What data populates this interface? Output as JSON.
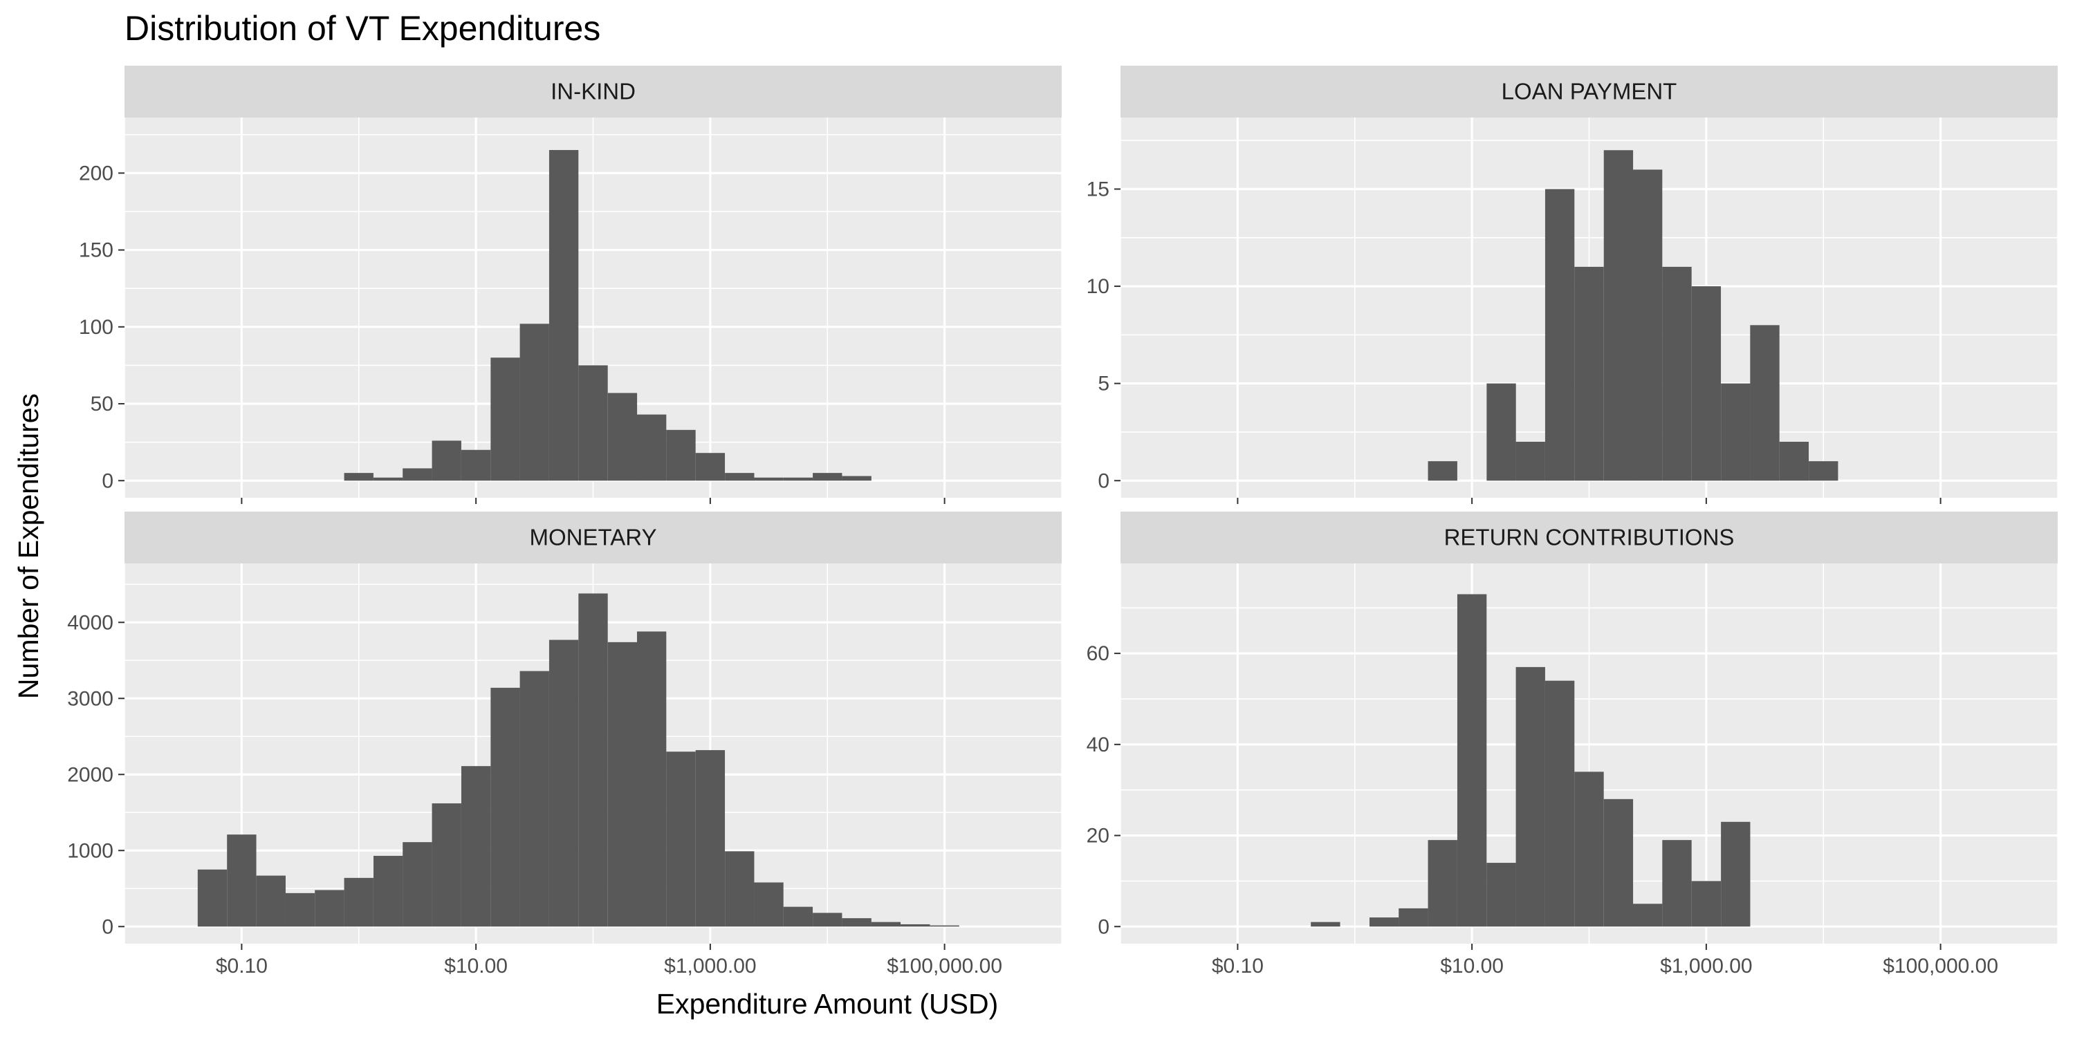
{
  "chart_data": {
    "type": "bar",
    "title": "Distribution of VT Expenditures",
    "xlabel": "Expenditure Amount (USD)",
    "ylabel": "Number of Expenditures",
    "x_scale": "log10",
    "x_range_usd": [
      0.01,
      1000000
    ],
    "x_ticks": [
      {
        "value": 0.1,
        "label": "$0.10"
      },
      {
        "value": 10,
        "label": "$10.00"
      },
      {
        "value": 1000,
        "label": "$1,000.00"
      },
      {
        "value": 100000,
        "label": "$100,000.00"
      }
    ],
    "bin_width_log10": 0.25,
    "grid": true,
    "panels": [
      {
        "name": "IN-KIND",
        "ylim": [
          0,
          225
        ],
        "y_ticks": [
          0,
          50,
          100,
          150,
          200
        ],
        "bins": [
          {
            "x": 1.0,
            "y": 5
          },
          {
            "x": 1.78,
            "y": 2
          },
          {
            "x": 3.16,
            "y": 8
          },
          {
            "x": 5.62,
            "y": 26
          },
          {
            "x": 10,
            "y": 20
          },
          {
            "x": 17.8,
            "y": 80
          },
          {
            "x": 31.6,
            "y": 102
          },
          {
            "x": 56.2,
            "y": 215
          },
          {
            "x": 100,
            "y": 75
          },
          {
            "x": 178,
            "y": 57
          },
          {
            "x": 316,
            "y": 43
          },
          {
            "x": 562,
            "y": 33
          },
          {
            "x": 1000,
            "y": 18
          },
          {
            "x": 1780,
            "y": 5
          },
          {
            "x": 3160,
            "y": 2
          },
          {
            "x": 5620,
            "y": 2
          },
          {
            "x": 10000,
            "y": 5
          },
          {
            "x": 17800,
            "y": 3
          }
        ]
      },
      {
        "name": "LOAN PAYMENT",
        "ylim": [
          0,
          17.8
        ],
        "y_ticks": [
          0,
          5,
          10,
          15
        ],
        "bins": [
          {
            "x": 5.62,
            "y": 1
          },
          {
            "x": 17.8,
            "y": 5
          },
          {
            "x": 31.6,
            "y": 2
          },
          {
            "x": 56.2,
            "y": 15
          },
          {
            "x": 100,
            "y": 11
          },
          {
            "x": 178,
            "y": 17
          },
          {
            "x": 316,
            "y": 16
          },
          {
            "x": 562,
            "y": 11
          },
          {
            "x": 1000,
            "y": 10
          },
          {
            "x": 1780,
            "y": 5
          },
          {
            "x": 3160,
            "y": 8
          },
          {
            "x": 5620,
            "y": 2
          },
          {
            "x": 10000,
            "y": 1
          }
        ]
      },
      {
        "name": "MONETARY",
        "ylim": [
          0,
          4550
        ],
        "y_ticks": [
          0,
          1000,
          2000,
          3000,
          4000
        ],
        "bins": [
          {
            "x": 0.0562,
            "y": 750
          },
          {
            "x": 0.1,
            "y": 1210
          },
          {
            "x": 0.178,
            "y": 670
          },
          {
            "x": 0.316,
            "y": 440
          },
          {
            "x": 0.562,
            "y": 480
          },
          {
            "x": 1.0,
            "y": 640
          },
          {
            "x": 1.78,
            "y": 930
          },
          {
            "x": 3.16,
            "y": 1110
          },
          {
            "x": 5.62,
            "y": 1620
          },
          {
            "x": 10,
            "y": 2110
          },
          {
            "x": 17.8,
            "y": 3140
          },
          {
            "x": 31.6,
            "y": 3360
          },
          {
            "x": 56.2,
            "y": 3770
          },
          {
            "x": 100,
            "y": 4380
          },
          {
            "x": 178,
            "y": 3740
          },
          {
            "x": 316,
            "y": 3880
          },
          {
            "x": 562,
            "y": 2300
          },
          {
            "x": 1000,
            "y": 2320
          },
          {
            "x": 1780,
            "y": 990
          },
          {
            "x": 3160,
            "y": 580
          },
          {
            "x": 5620,
            "y": 260
          },
          {
            "x": 10000,
            "y": 180
          },
          {
            "x": 17800,
            "y": 110
          },
          {
            "x": 31600,
            "y": 60
          },
          {
            "x": 56200,
            "y": 30
          },
          {
            "x": 100000,
            "y": 15
          }
        ]
      },
      {
        "name": "RETURN CONTRIBUTIONS",
        "ylim": [
          0,
          76
        ],
        "y_ticks": [
          0,
          20,
          40,
          60
        ],
        "bins": [
          {
            "x": 0.562,
            "y": 1
          },
          {
            "x": 1.78,
            "y": 2
          },
          {
            "x": 3.16,
            "y": 4
          },
          {
            "x": 5.62,
            "y": 19
          },
          {
            "x": 10,
            "y": 73
          },
          {
            "x": 17.8,
            "y": 14
          },
          {
            "x": 31.6,
            "y": 57
          },
          {
            "x": 56.2,
            "y": 54
          },
          {
            "x": 100,
            "y": 34
          },
          {
            "x": 178,
            "y": 28
          },
          {
            "x": 316,
            "y": 5
          },
          {
            "x": 562,
            "y": 19
          },
          {
            "x": 1000,
            "y": 10
          },
          {
            "x": 1780,
            "y": 23
          }
        ]
      }
    ]
  }
}
